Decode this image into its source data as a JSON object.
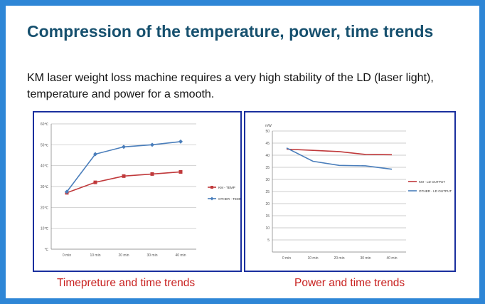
{
  "slide": {
    "title": "Compression of the temperature, power, time trends",
    "description": "KM laser weight loss machine requires a very high stability of the LD (laser light), temperature and power for a smooth.",
    "caption_left": "Timepreture and  time trends",
    "caption_right": "Power and time trends"
  },
  "colors": {
    "background": "#2e86d6",
    "title": "#16506e",
    "caption": "#c8201f",
    "chart_border": "#1a2f9e",
    "km_series": "#c0393b",
    "other_series": "#4a7ebb"
  },
  "chart_data": [
    {
      "type": "line",
      "x": [
        "0 min",
        "10 min",
        "20 min",
        "30 min",
        "40 min"
      ],
      "yticks": [
        "℃",
        "10℃",
        "20℃",
        "30℃",
        "40℃",
        "50℃",
        "60℃"
      ],
      "ylim": [
        0,
        60
      ],
      "ylabel": "",
      "grid": true,
      "legend_position": "right",
      "series": [
        {
          "name": "KM - TEMP",
          "values": [
            27,
            32,
            35,
            36,
            37
          ],
          "marker": "square"
        },
        {
          "name": "OTHER - TEMP",
          "values": [
            27.5,
            45.5,
            49,
            50,
            51.5
          ],
          "marker": "diamond"
        }
      ]
    },
    {
      "type": "line",
      "x": [
        "0 min",
        "10 min",
        "20 min",
        "30 min",
        "40 min"
      ],
      "yticks": [
        "",
        "5",
        "10",
        "15",
        "20",
        "25",
        "30",
        "35",
        "40",
        "45",
        "50"
      ],
      "ylim": [
        0,
        50
      ],
      "ylabel": "mW",
      "grid": true,
      "legend_position": "right",
      "series": [
        {
          "name": "KM - LD OUTPUT",
          "values": [
            42.5,
            42,
            41.5,
            40.3,
            40.2
          ],
          "marker": "none"
        },
        {
          "name": "OTHER - LD OUTPUT",
          "values": [
            43,
            37.5,
            35.8,
            35.6,
            34.2
          ],
          "marker": "none"
        }
      ]
    }
  ]
}
